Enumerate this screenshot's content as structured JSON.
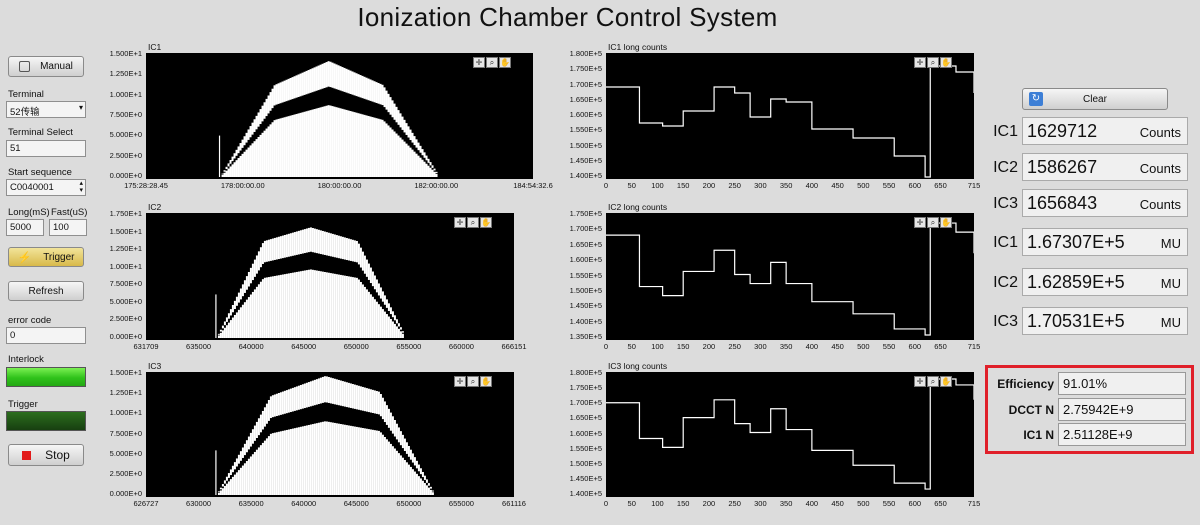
{
  "title": "Ionization Chamber Control System",
  "controls": {
    "manual_label": "Manual",
    "terminal_label": "Terminal",
    "terminal_value": "52传输",
    "terminal_select_label": "Terminal Select",
    "terminal_select_value": "51",
    "start_sequence_label": "Start sequence",
    "start_sequence_value": "C0040001",
    "long_label": "Long(mS)",
    "fast_label": "Fast(uS)",
    "long_value": "5000",
    "fast_value": "100",
    "trigger_label": "Trigger",
    "refresh_label": "Refresh",
    "error_code_label": "error code",
    "error_code_value": "0",
    "interlock_label": "Interlock",
    "trigger_led_label": "Trigger",
    "stop_label": "Stop",
    "clear_label": "Clear"
  },
  "colors": {
    "interlock_led": "#3fd61f",
    "trigger_led": "#1f5a14",
    "stop_square": "#e21a1a",
    "efficiency_border": "#e0202a"
  },
  "plots": {
    "ic1": {
      "title": "IC1",
      "yticks": [
        "1.500E+1",
        "1.250E+1",
        "1.000E+1",
        "7.500E+0",
        "5.000E+0",
        "2.500E+0",
        "0.000E+0"
      ],
      "xticks": [
        "175:28:28.45",
        "178:00:00.00",
        "180:00:00.00",
        "182:00:00.00",
        "184:54:32.6"
      ]
    },
    "ic2": {
      "title": "IC2",
      "yticks": [
        "1.750E+1",
        "1.500E+1",
        "1.250E+1",
        "1.000E+1",
        "7.500E+0",
        "5.000E+0",
        "2.500E+0",
        "0.000E+0"
      ],
      "xticks": [
        "631709",
        "635000",
        "640000",
        "645000",
        "650000",
        "655000",
        "660000",
        "666151"
      ]
    },
    "ic3": {
      "title": "IC3",
      "yticks": [
        "1.500E+1",
        "1.250E+1",
        "1.000E+1",
        "7.500E+0",
        "5.000E+0",
        "2.500E+0",
        "0.000E+0"
      ],
      "xticks": [
        "626727",
        "630000",
        "635000",
        "640000",
        "645000",
        "650000",
        "655000",
        "661116"
      ]
    },
    "ic1_long": {
      "title": "IC1 long counts",
      "yticks": [
        "1.800E+5",
        "1.750E+5",
        "1.700E+5",
        "1.650E+5",
        "1.600E+5",
        "1.550E+5",
        "1.500E+5",
        "1.450E+5",
        "1.400E+5"
      ],
      "xticks": [
        "0",
        "50",
        "100",
        "150",
        "200",
        "250",
        "300",
        "350",
        "400",
        "450",
        "500",
        "550",
        "600",
        "650",
        "715"
      ]
    },
    "ic2_long": {
      "title": "IC2 long counts",
      "yticks": [
        "1.750E+5",
        "1.700E+5",
        "1.650E+5",
        "1.600E+5",
        "1.550E+5",
        "1.500E+5",
        "1.450E+5",
        "1.400E+5",
        "1.350E+5"
      ],
      "xticks": [
        "0",
        "50",
        "100",
        "150",
        "200",
        "250",
        "300",
        "350",
        "400",
        "450",
        "500",
        "550",
        "600",
        "650",
        "715"
      ]
    },
    "ic3_long": {
      "title": "IC3 long counts",
      "yticks": [
        "1.800E+5",
        "1.750E+5",
        "1.700E+5",
        "1.650E+5",
        "1.600E+5",
        "1.550E+5",
        "1.500E+5",
        "1.450E+5",
        "1.400E+5"
      ],
      "xticks": [
        "0",
        "50",
        "100",
        "150",
        "200",
        "250",
        "300",
        "350",
        "400",
        "450",
        "500",
        "550",
        "600",
        "650",
        "715"
      ]
    }
  },
  "readouts": [
    {
      "name": "IC1",
      "value": "1629712",
      "unit": "Counts"
    },
    {
      "name": "IC2",
      "value": "1586267",
      "unit": "Counts"
    },
    {
      "name": "IC3",
      "value": "1656843",
      "unit": "Counts"
    },
    {
      "name": "IC1",
      "value": "1.67307E+5",
      "unit": "MU"
    },
    {
      "name": "IC2",
      "value": "1.62859E+5",
      "unit": "MU"
    },
    {
      "name": "IC3",
      "value": "1.70531E+5",
      "unit": "MU"
    }
  ],
  "efficiency": {
    "efficiency_label": "Efficiency",
    "efficiency_value": "91.01%",
    "dcct_label": "DCCT N",
    "dcct_value": "2.75942E+9",
    "ic1n_label": "IC1 N",
    "ic1n_value": "2.51128E+9"
  },
  "chart_data": [
    {
      "type": "area",
      "title": "IC1",
      "ylim": [
        0,
        15
      ],
      "x": [
        "178:00:00.00",
        "179:00:00.00",
        "180:00:00.00",
        "181:00:00.00",
        "182:00:00.00"
      ],
      "series": [
        {
          "values": [
            0,
            11.5,
            14.5,
            11.5,
            0.5
          ]
        }
      ]
    },
    {
      "type": "area",
      "title": "IC2",
      "ylim": [
        0,
        17.5
      ],
      "x": [
        638500,
        643000,
        646000,
        650000,
        657000
      ],
      "series": [
        {
          "values": [
            0,
            14,
            16,
            14,
            0.5
          ]
        }
      ]
    },
    {
      "type": "area",
      "title": "IC3",
      "ylim": [
        0,
        15
      ],
      "x": [
        634500,
        638000,
        641000,
        645000,
        653000
      ],
      "series": [
        {
          "values": [
            0,
            12.5,
            15,
            13,
            0.3
          ]
        }
      ]
    },
    {
      "type": "line",
      "title": "IC1 long counts",
      "ylim": [
        140000,
        180000
      ],
      "x": [
        0,
        65,
        110,
        150,
        210,
        250,
        280,
        320,
        350,
        400,
        430,
        480,
        510,
        560,
        570,
        620,
        630,
        680,
        715
      ],
      "y": [
        170000,
        158000,
        157000,
        162000,
        170000,
        168000,
        160000,
        166000,
        165000,
        156000,
        156000,
        153000,
        153000,
        147000,
        147000,
        140000,
        177000,
        175000,
        168000
      ]
    },
    {
      "type": "line",
      "title": "IC2 long counts",
      "ylim": [
        135000,
        175000
      ],
      "x": [
        0,
        65,
        110,
        150,
        210,
        250,
        280,
        320,
        350,
        400,
        430,
        480,
        510,
        560,
        570,
        620,
        630,
        680,
        715
      ],
      "y": [
        169000,
        152000,
        149000,
        157000,
        164000,
        156000,
        153000,
        160000,
        153000,
        147000,
        147000,
        143000,
        143000,
        138000,
        138000,
        136000,
        173000,
        170000,
        163000
      ]
    },
    {
      "type": "line",
      "title": "IC3 long counts",
      "ylim": [
        140000,
        180000
      ],
      "x": [
        0,
        65,
        110,
        150,
        210,
        250,
        280,
        320,
        350,
        400,
        430,
        480,
        510,
        560,
        570,
        620,
        630,
        680,
        715
      ],
      "y": [
        171000,
        159000,
        156000,
        166000,
        172000,
        164000,
        161000,
        169000,
        162000,
        155000,
        155000,
        150000,
        150000,
        144000,
        144000,
        142000,
        179000,
        177000,
        172000
      ]
    }
  ]
}
